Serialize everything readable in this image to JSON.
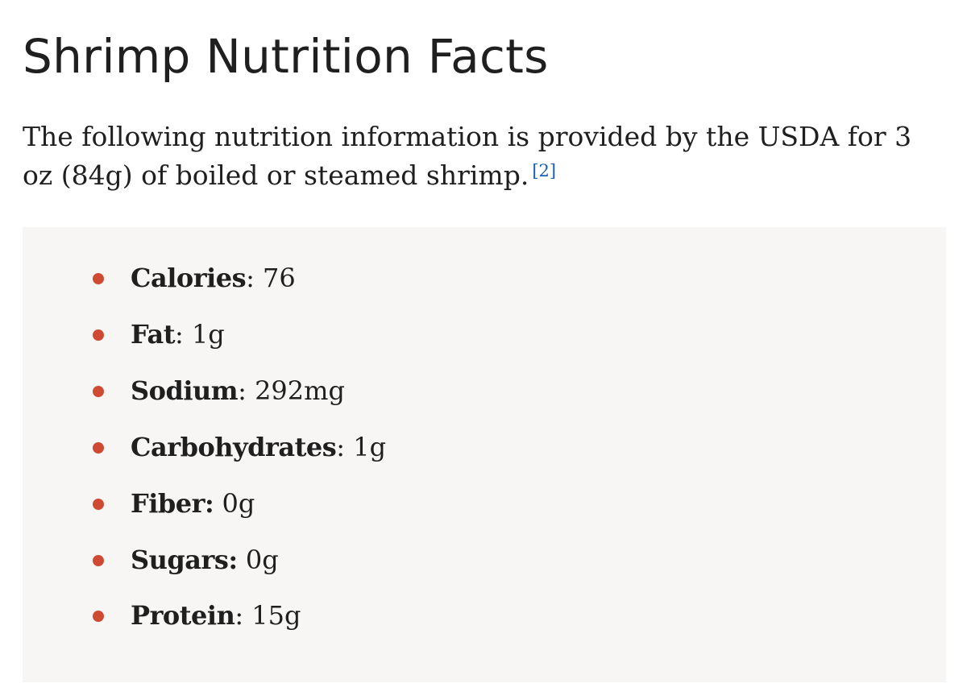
{
  "heading": "Shrimp Nutrition Facts",
  "intro": {
    "text": "The following nutrition information is provided by the USDA for 3 oz (84g) of boiled or steamed shrimp.",
    "reference": "[2]"
  },
  "accent_colors": {
    "bullet": "#cf4a32",
    "link": "#1a5fb4",
    "box_background": "#f7f6f4"
  },
  "facts": [
    {
      "name": "Calories",
      "separator": ": ",
      "value": "76"
    },
    {
      "name": "Fat",
      "separator": ": ",
      "value": "1g"
    },
    {
      "name": "Sodium",
      "separator": ": ",
      "value": "292mg"
    },
    {
      "name": "Carbohydrates",
      "separator": ": ",
      "value": "1g"
    },
    {
      "name": "Fiber:",
      "separator": " ",
      "value": "0g"
    },
    {
      "name": "Sugars:",
      "separator": " ",
      "value": "0g"
    },
    {
      "name": "Protein",
      "separator": ": ",
      "value": "15g"
    }
  ]
}
